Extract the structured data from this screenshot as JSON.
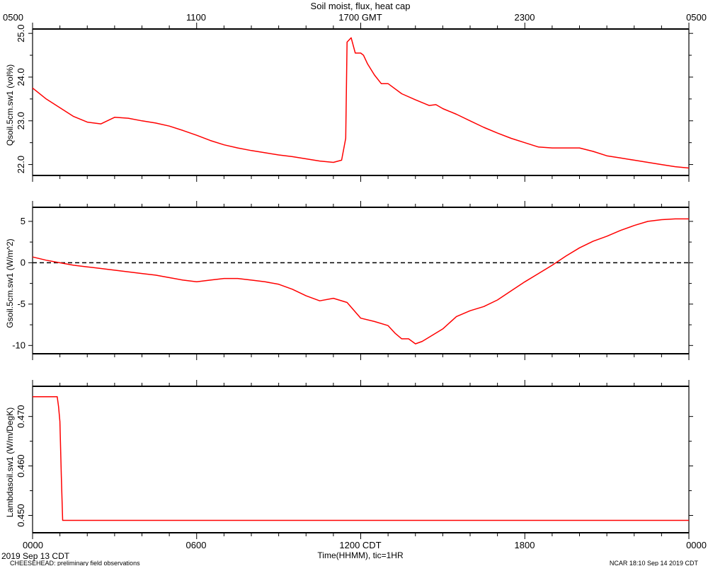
{
  "header": {
    "title": "Soil moist, flux, heat cap",
    "top_ticks": [
      "0500",
      "1100",
      "1700 GMT",
      "2300",
      "0500"
    ]
  },
  "footer": {
    "bottom_ticks": [
      "0000",
      "0600",
      "1200 CDT",
      "1800",
      "0000"
    ],
    "xlabel": "Time(HHMM), tic=1HR",
    "date_label": "2019 Sep 13 CDT",
    "project_label": "CHEESEHEAD: preliminary field observations",
    "stamp": "NCAR 18:10 Sep 14 2019 CDT"
  },
  "colors": {
    "series": "#ff0000",
    "axis": "#000000",
    "zero_line": "#000000"
  },
  "chart_data": [
    {
      "type": "line",
      "ylabel": "Qsoil.5cm.sw1 (vol%)",
      "x_unit": "hours since 0000 CDT",
      "xlim": [
        0,
        24
      ],
      "ylim": [
        21.75,
        25.1
      ],
      "yticks": [
        22.0,
        23.0,
        24.0,
        25.0
      ],
      "ytick_labels": [
        "22.0",
        "23.0",
        "24.0",
        "25.0"
      ],
      "zero_line": false,
      "series": [
        {
          "x": [
            0,
            0.5,
            1.0,
            1.5,
            2.0,
            2.5,
            3.0,
            3.5,
            4.0,
            4.5,
            5.0,
            5.5,
            6.0,
            6.5,
            7.0,
            7.5,
            8.0,
            8.5,
            9.0,
            9.5,
            10.0,
            10.5,
            11.0,
            11.3,
            11.45,
            11.5,
            11.65,
            11.8,
            12.0,
            12.1,
            12.25,
            12.5,
            12.75,
            13.0,
            13.5,
            14.0,
            14.5,
            14.75,
            15.0,
            15.5,
            16.0,
            16.5,
            17.0,
            17.5,
            18.0,
            18.5,
            19.0,
            19.5,
            20.0,
            20.5,
            21.0,
            21.5,
            22.0,
            22.5,
            23.0,
            23.5,
            24.0
          ],
          "y": [
            23.75,
            23.5,
            23.3,
            23.1,
            22.97,
            22.93,
            23.08,
            23.06,
            23.0,
            22.95,
            22.88,
            22.78,
            22.67,
            22.55,
            22.45,
            22.38,
            22.32,
            22.27,
            22.22,
            22.18,
            22.13,
            22.08,
            22.05,
            22.1,
            22.6,
            24.8,
            24.9,
            24.55,
            24.55,
            24.5,
            24.3,
            24.05,
            23.85,
            23.85,
            23.62,
            23.48,
            23.35,
            23.37,
            23.28,
            23.15,
            23.0,
            22.85,
            22.72,
            22.6,
            22.5,
            22.4,
            22.38,
            22.38,
            22.38,
            22.3,
            22.2,
            22.15,
            22.1,
            22.05,
            22.0,
            21.95,
            21.92
          ]
        }
      ]
    },
    {
      "type": "line",
      "ylabel": "Gsoil.5cm.sw1 (W/m^2)",
      "x_unit": "hours since 0000 CDT",
      "xlim": [
        0,
        24
      ],
      "ylim": [
        -11,
        6.7
      ],
      "yticks": [
        -10,
        -5,
        0,
        5
      ],
      "ytick_labels": [
        "-10",
        "-5",
        "0",
        "5"
      ],
      "zero_line": true,
      "series": [
        {
          "x": [
            0,
            0.5,
            1.0,
            1.5,
            2.0,
            2.5,
            3.0,
            3.5,
            4.0,
            4.5,
            5.0,
            5.5,
            6.0,
            6.5,
            7.0,
            7.5,
            8.0,
            8.5,
            9.0,
            9.5,
            10.0,
            10.5,
            11.0,
            11.5,
            12.0,
            12.5,
            13.0,
            13.25,
            13.5,
            13.75,
            14.0,
            14.25,
            14.5,
            15.0,
            15.5,
            16.0,
            16.5,
            17.0,
            17.5,
            18.0,
            18.5,
            19.0,
            19.5,
            20.0,
            20.5,
            21.0,
            21.5,
            22.0,
            22.5,
            23.0,
            23.5,
            24.0
          ],
          "y": [
            0.7,
            0.3,
            0.0,
            -0.3,
            -0.5,
            -0.7,
            -0.9,
            -1.1,
            -1.3,
            -1.5,
            -1.8,
            -2.1,
            -2.3,
            -2.1,
            -1.9,
            -1.9,
            -2.1,
            -2.3,
            -2.6,
            -3.2,
            -4.0,
            -4.6,
            -4.3,
            -4.8,
            -6.7,
            -7.1,
            -7.6,
            -8.5,
            -9.2,
            -9.2,
            -9.8,
            -9.5,
            -9.0,
            -8.0,
            -6.5,
            -5.8,
            -5.3,
            -4.5,
            -3.4,
            -2.3,
            -1.3,
            -0.3,
            0.8,
            1.8,
            2.6,
            3.2,
            3.9,
            4.5,
            5.0,
            5.2,
            5.3,
            5.3
          ]
        }
      ]
    },
    {
      "type": "line",
      "ylabel": "Lambdasoil.sw1 (W/m/DegK)",
      "x_unit": "hours since 0000 CDT",
      "xlim": [
        0,
        24
      ],
      "ylim": [
        0.4465,
        0.4761
      ],
      "yticks": [
        0.45,
        0.46,
        0.47
      ],
      "ytick_labels": [
        "0.450",
        "0.460",
        "0.470"
      ],
      "zero_line": false,
      "series": [
        {
          "x": [
            0,
            0.9,
            0.95,
            1.0,
            1.05,
            1.1,
            24.0
          ],
          "y": [
            0.474,
            0.474,
            0.472,
            0.469,
            0.458,
            0.449,
            0.449
          ]
        }
      ]
    }
  ]
}
